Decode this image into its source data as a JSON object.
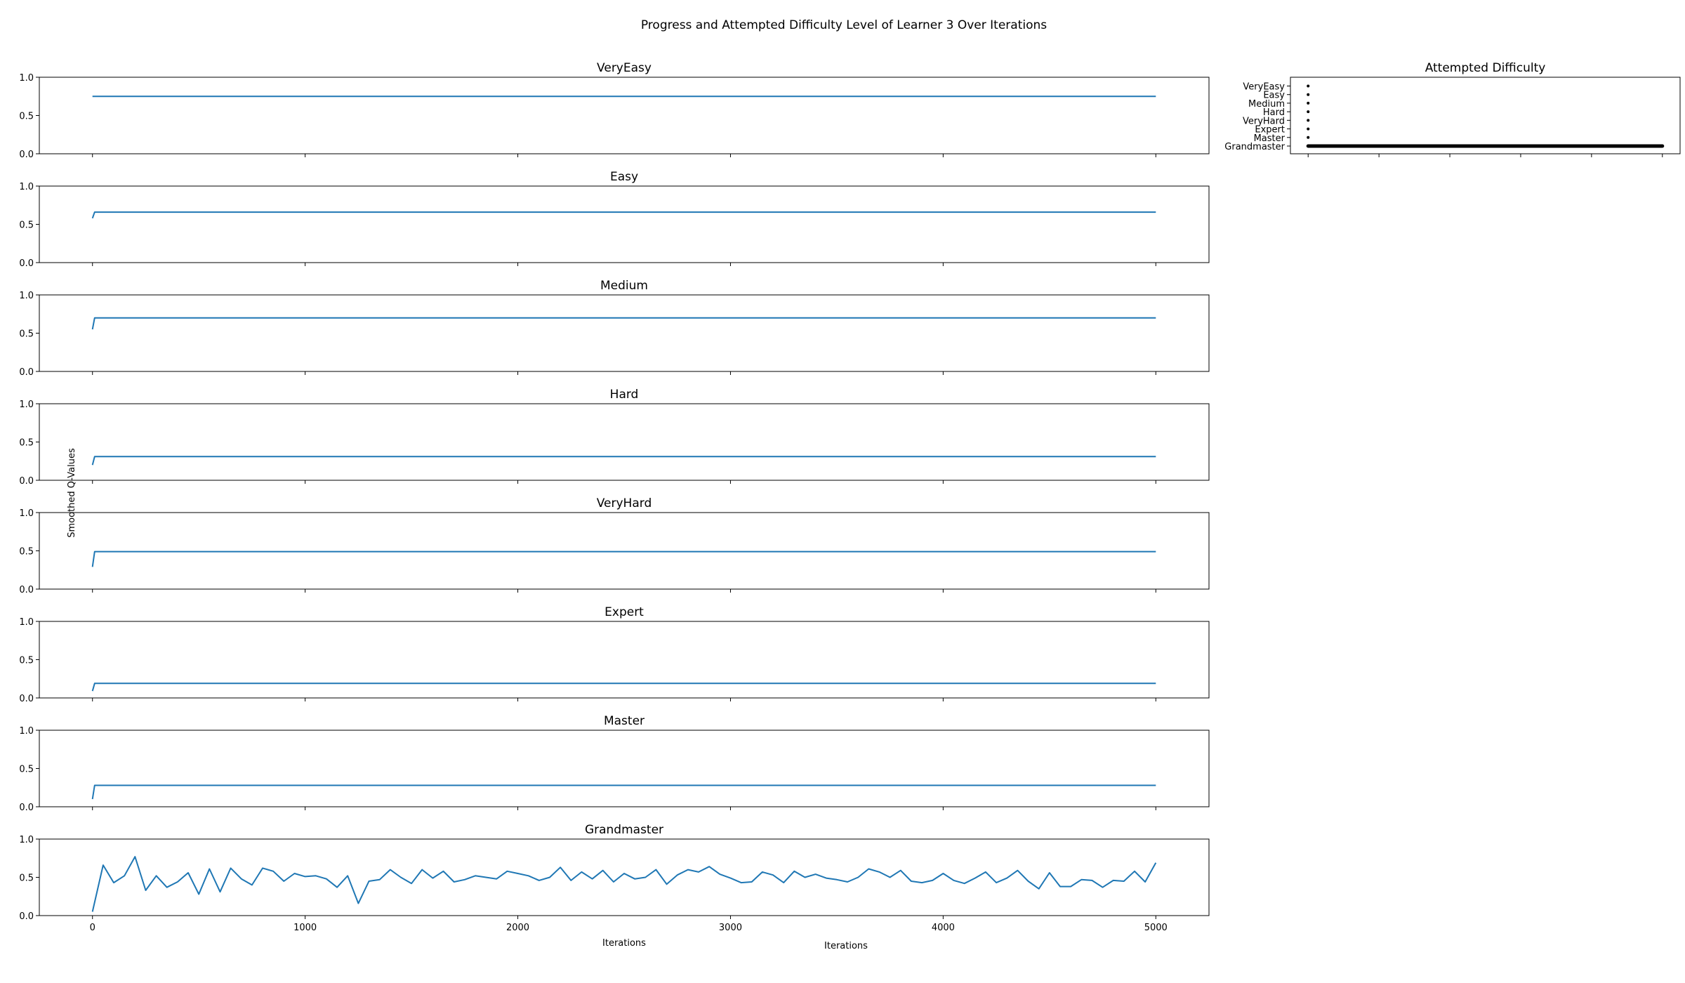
{
  "figure": {
    "suptitle": "Progress and Attempted Difficulty Level of Learner 3 Over Iterations",
    "ylabel": "Smoothed Q-Values",
    "xlabel_left": "Iterations",
    "xlabel_right": "Iterations",
    "line_color": "#1f77b4",
    "dot_color": "#000000"
  },
  "chart_data": [
    {
      "type": "line",
      "title": "VeryEasy",
      "xlim": [
        -250,
        5250
      ],
      "ylim": [
        0,
        1
      ],
      "xticks": [
        0,
        1000,
        2000,
        3000,
        4000,
        5000
      ],
      "yticks": [
        0.0,
        0.5,
        1.0
      ],
      "series": [
        {
          "start": 0.75,
          "plateau": 0.75,
          "settle_by": 0,
          "x_end": 5000
        }
      ]
    },
    {
      "type": "line",
      "title": "Easy",
      "xlim": [
        -250,
        5250
      ],
      "ylim": [
        0,
        1
      ],
      "xticks": [
        0,
        1000,
        2000,
        3000,
        4000,
        5000
      ],
      "yticks": [
        0.0,
        0.5,
        1.0
      ],
      "series": [
        {
          "start": 0.58,
          "plateau": 0.66,
          "settle_by": 10,
          "x_end": 5000
        }
      ]
    },
    {
      "type": "line",
      "title": "Medium",
      "xlim": [
        -250,
        5250
      ],
      "ylim": [
        0,
        1
      ],
      "xticks": [
        0,
        1000,
        2000,
        3000,
        4000,
        5000
      ],
      "yticks": [
        0.0,
        0.5,
        1.0
      ],
      "series": [
        {
          "start": 0.55,
          "plateau": 0.7,
          "settle_by": 10,
          "x_end": 5000
        }
      ]
    },
    {
      "type": "line",
      "title": "Hard",
      "xlim": [
        -250,
        5250
      ],
      "ylim": [
        0,
        1
      ],
      "xticks": [
        0,
        1000,
        2000,
        3000,
        4000,
        5000
      ],
      "yticks": [
        0.0,
        0.5,
        1.0
      ],
      "series": [
        {
          "start": 0.2,
          "plateau": 0.31,
          "settle_by": 10,
          "x_end": 5000
        }
      ]
    },
    {
      "type": "line",
      "title": "VeryHard",
      "xlim": [
        -250,
        5250
      ],
      "ylim": [
        0,
        1
      ],
      "xticks": [
        0,
        1000,
        2000,
        3000,
        4000,
        5000
      ],
      "yticks": [
        0.0,
        0.5,
        1.0
      ],
      "series": [
        {
          "start": 0.29,
          "plateau": 0.49,
          "settle_by": 10,
          "x_end": 5000
        }
      ]
    },
    {
      "type": "line",
      "title": "Expert",
      "xlim": [
        -250,
        5250
      ],
      "ylim": [
        0,
        1
      ],
      "xticks": [
        0,
        1000,
        2000,
        3000,
        4000,
        5000
      ],
      "yticks": [
        0.0,
        0.5,
        1.0
      ],
      "series": [
        {
          "start": 0.09,
          "plateau": 0.19,
          "settle_by": 10,
          "x_end": 5000
        }
      ]
    },
    {
      "type": "line",
      "title": "Master",
      "xlim": [
        -250,
        5250
      ],
      "ylim": [
        0,
        1
      ],
      "xticks": [
        0,
        1000,
        2000,
        3000,
        4000,
        5000
      ],
      "yticks": [
        0.0,
        0.5,
        1.0
      ],
      "series": [
        {
          "start": 0.1,
          "plateau": 0.28,
          "settle_by": 10,
          "x_end": 5000
        }
      ]
    },
    {
      "type": "line",
      "title": "Grandmaster",
      "xlim": [
        -250,
        5250
      ],
      "ylim": [
        0,
        1
      ],
      "xticks": [
        0,
        1000,
        2000,
        3000,
        4000,
        5000
      ],
      "xtick_labels": [
        "0",
        "1000",
        "2000",
        "3000",
        "4000",
        "5000"
      ],
      "yticks": [
        0.0,
        0.5,
        1.0
      ],
      "series": [
        {
          "x_start": 0,
          "x_end": 5000,
          "x_step": 50,
          "y": [
            0.05,
            0.66,
            0.43,
            0.52,
            0.77,
            0.33,
            0.52,
            0.37,
            0.44,
            0.56,
            0.28,
            0.61,
            0.31,
            0.62,
            0.48,
            0.4,
            0.62,
            0.58,
            0.45,
            0.55,
            0.51,
            0.52,
            0.48,
            0.37,
            0.52,
            0.16,
            0.45,
            0.47,
            0.6,
            0.5,
            0.42,
            0.6,
            0.49,
            0.58,
            0.44,
            0.47,
            0.52,
            0.5,
            0.48,
            0.58,
            0.55,
            0.52,
            0.46,
            0.5,
            0.63,
            0.46,
            0.57,
            0.48,
            0.59,
            0.44,
            0.55,
            0.48,
            0.5,
            0.6,
            0.41,
            0.53,
            0.6,
            0.57,
            0.64,
            0.54,
            0.49,
            0.43,
            0.44,
            0.57,
            0.53,
            0.43,
            0.58,
            0.5,
            0.54,
            0.49,
            0.47,
            0.44,
            0.5,
            0.61,
            0.57,
            0.5,
            0.59,
            0.45,
            0.43,
            0.46,
            0.55,
            0.46,
            0.42,
            0.49,
            0.57,
            0.43,
            0.49,
            0.59,
            0.45,
            0.35,
            0.56,
            0.38,
            0.38,
            0.47,
            0.46,
            0.37,
            0.46,
            0.45,
            0.58,
            0.44,
            0.69
          ]
        }
      ]
    },
    {
      "type": "scatter",
      "title": "Attempted Difficulty",
      "xlim": [
        -250,
        5250
      ],
      "categories": [
        "VeryEasy",
        "Easy",
        "Medium",
        "Hard",
        "VeryHard",
        "Expert",
        "Master",
        "Grandmaster"
      ],
      "xticks": [
        0,
        1000,
        2000,
        3000,
        4000,
        5000
      ],
      "series": [
        {
          "points": [
            {
              "x": 0,
              "y": "VeryEasy"
            },
            {
              "x": 0,
              "y": "Easy"
            },
            {
              "x": 0,
              "y": "Medium"
            },
            {
              "x": 0,
              "y": "Hard"
            },
            {
              "x": 0,
              "y": "VeryHard"
            },
            {
              "x": 0,
              "y": "Expert"
            },
            {
              "x": 0,
              "y": "Master"
            }
          ],
          "dense_run": {
            "y": "Grandmaster",
            "x_start": 0,
            "x_end": 5000
          }
        }
      ]
    }
  ]
}
